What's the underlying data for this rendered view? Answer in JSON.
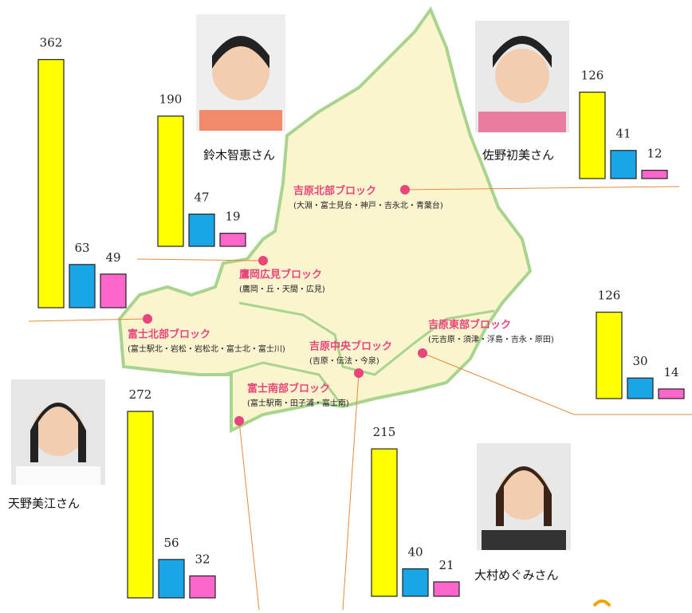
{
  "blocks": [
    {
      "name": "吉原北部ブロック",
      "areas": "(大淵・富士見台・神戸・吉永北・青葉台)"
    },
    {
      "name": "鷹岡広見ブロック",
      "areas": "(鷹岡・丘・天間・広見)"
    },
    {
      "name": "富士北部ブロック",
      "areas": "(富士駅北・岩松・岩松北・富士北・富士川)"
    },
    {
      "name": "吉原中央ブロック",
      "areas": "(吉原・伝法・今泉)"
    },
    {
      "name": "吉原東部ブロック",
      "areas": "(元吉原・須津・浮島・吉永・原田)"
    },
    {
      "name": "富士南部ブロック",
      "areas": "(富士駅南・田子浦・富士南)"
    }
  ],
  "bar_groups": [
    {
      "values": [
        362,
        63,
        49
      ]
    },
    {
      "values": [
        190,
        47,
        19
      ]
    },
    {
      "values": [
        126,
        41,
        12
      ]
    },
    {
      "values": [
        126,
        30,
        14
      ]
    },
    {
      "values": [
        272,
        56,
        32
      ]
    },
    {
      "values": [
        215,
        40,
        21
      ]
    }
  ],
  "bar_colors": [
    "#ffff00",
    "#1aa6e6",
    "#ff66cc"
  ],
  "people": [
    "鈴木智恵さん",
    "佐野初美さん",
    "天野美江さん",
    "大村めぐみさん"
  ]
}
